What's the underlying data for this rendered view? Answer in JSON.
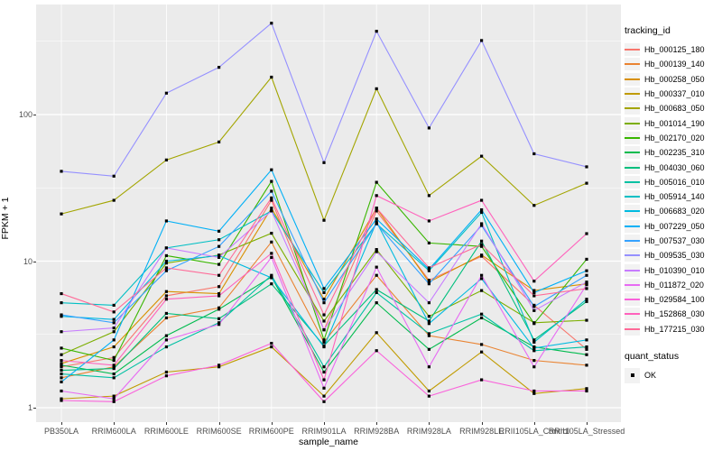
{
  "figure": {
    "background": "#FFFFFF",
    "panel_background": "#EBEBEB",
    "gridline_color": "#FFFFFF",
    "tick_label_color": "#4D4D4D",
    "marker_color": "#000000",
    "legend_key_background": "#F2F2F2"
  },
  "chart_data": {
    "type": "line",
    "title": "",
    "xlabel": "sample_name",
    "ylabel": "FPKM + 1",
    "y_scale": "log10",
    "y_ticks": [
      1,
      10,
      100
    ],
    "y_minor_gridlines": [
      3.162,
      31.623,
      316.228
    ],
    "ylim": [
      0.8,
      560
    ],
    "grid": "on",
    "legend_position": "right",
    "marker": "small-black-square",
    "categories": [
      "PB350LA",
      "RRIM600LA",
      "RRIM600LE",
      "RRIM600SE",
      "RRIM600PE",
      "RRIM901LA",
      "RRIM928BA",
      "RRIM928LA",
      "RRIM928LE",
      "RRII105LA_Control",
      "RRII105LA_Stressed"
    ],
    "series": [
      {
        "name": "Hb_000125_180",
        "color": "#F8766D",
        "values": [
          1.9,
          2.2,
          5.8,
          6.7,
          26,
          3.4,
          22,
          7.4,
          10.8,
          5.0,
          2.5
        ]
      },
      {
        "name": "Hb_000139_140",
        "color": "#EA8331",
        "values": [
          1.6,
          1.9,
          4.1,
          4.8,
          13.5,
          2.8,
          8.0,
          3.1,
          2.7,
          2.1,
          1.95
        ]
      },
      {
        "name": "Hb_000258_050",
        "color": "#D89000",
        "values": [
          2.0,
          2.6,
          6.2,
          6.0,
          23,
          5.5,
          23,
          7.2,
          11,
          6.3,
          7.0
        ]
      },
      {
        "name": "Hb_000337_010",
        "color": "#C09B00",
        "values": [
          1.15,
          1.2,
          1.75,
          1.9,
          2.6,
          1.2,
          3.25,
          1.3,
          2.4,
          1.25,
          1.35
        ]
      },
      {
        "name": "Hb_000683_050",
        "color": "#A3A500",
        "values": [
          21,
          26,
          49,
          65,
          180,
          19,
          150,
          28,
          52,
          24,
          34
        ]
      },
      {
        "name": "Hb_001014_190",
        "color": "#7CAE00",
        "values": [
          2.3,
          3.3,
          9.7,
          11,
          15.5,
          3.9,
          12,
          4.2,
          6.3,
          3.8,
          3.95
        ]
      },
      {
        "name": "Hb_002170_020",
        "color": "#39B600",
        "values": [
          2.55,
          2.1,
          10.9,
          9.5,
          35,
          2.9,
          34.5,
          13.3,
          12.6,
          3.75,
          10.3
        ]
      },
      {
        "name": "Hb_002235_310",
        "color": "#00BB4E",
        "values": [
          1.95,
          1.7,
          3.1,
          4.7,
          7.8,
          1.75,
          5.2,
          2.5,
          4.1,
          2.6,
          2.3
        ]
      },
      {
        "name": "Hb_004030_060",
        "color": "#00BF7D",
        "values": [
          1.8,
          1.85,
          4.4,
          4.05,
          7.0,
          2.65,
          6.4,
          3.9,
          13.7,
          2.9,
          5.3
        ]
      },
      {
        "name": "Hb_005016_010",
        "color": "#00C1A3",
        "values": [
          1.7,
          1.6,
          2.6,
          3.8,
          8.0,
          1.9,
          6.1,
          3.2,
          4.35,
          2.45,
          2.6
        ]
      },
      {
        "name": "Hb_005914_140",
        "color": "#00BFC4",
        "values": [
          5.2,
          5.0,
          12.3,
          14,
          22,
          6.1,
          18,
          8.6,
          21.5,
          2.8,
          5.5
        ]
      },
      {
        "name": "Hb_006683_020",
        "color": "#00BAE0",
        "values": [
          4.2,
          4.0,
          10,
          10.9,
          7.7,
          2.6,
          18.5,
          3.75,
          7.6,
          2.55,
          2.9
        ]
      },
      {
        "name": "Hb_007229_050",
        "color": "#00B0F6",
        "values": [
          1.5,
          2.9,
          18.8,
          16,
          42,
          6.5,
          19.4,
          8.8,
          22.4,
          6.1,
          8.6
        ]
      },
      {
        "name": "Hb_007537_030",
        "color": "#35A2FF",
        "values": [
          4.3,
          3.8,
          8.6,
          12.6,
          30,
          5.2,
          18,
          7.0,
          17.5,
          4.9,
          8.0
        ]
      },
      {
        "name": "Hb_009535_030",
        "color": "#9590FF",
        "values": [
          41,
          38,
          140,
          210,
          420,
          47,
          370,
          81,
          320,
          54,
          44
        ]
      },
      {
        "name": "Hb_010390_010",
        "color": "#C77CFF",
        "values": [
          3.3,
          3.5,
          12.3,
          10.6,
          22,
          3.4,
          11.6,
          5.2,
          18,
          4.6,
          7.2
        ]
      },
      {
        "name": "Hb_011872_020",
        "color": "#E76BF3",
        "values": [
          1.3,
          1.15,
          2.9,
          3.7,
          10.6,
          1.36,
          9.1,
          1.9,
          8.0,
          1.9,
          6.9
        ]
      },
      {
        "name": "Hb_029584_100",
        "color": "#FA62DB",
        "values": [
          1.12,
          1.1,
          1.65,
          1.95,
          2.75,
          1.1,
          2.45,
          1.2,
          1.55,
          1.3,
          1.3
        ]
      },
      {
        "name": "Hb_152868_030",
        "color": "#FF62BC",
        "values": [
          2.1,
          1.95,
          5.5,
          5.8,
          11.3,
          1.55,
          28,
          18.8,
          26,
          7.3,
          15.4
        ]
      },
      {
        "name": "Hb_177215_030",
        "color": "#FF6A98",
        "values": [
          6.0,
          4.5,
          9.0,
          8.0,
          27,
          4.3,
          23,
          9.0,
          13,
          5.8,
          6.5
        ]
      }
    ],
    "legend": {
      "tracking_title": "tracking_id",
      "quant_title": "quant_status",
      "quant_items": [
        {
          "label": "OK"
        }
      ]
    }
  }
}
